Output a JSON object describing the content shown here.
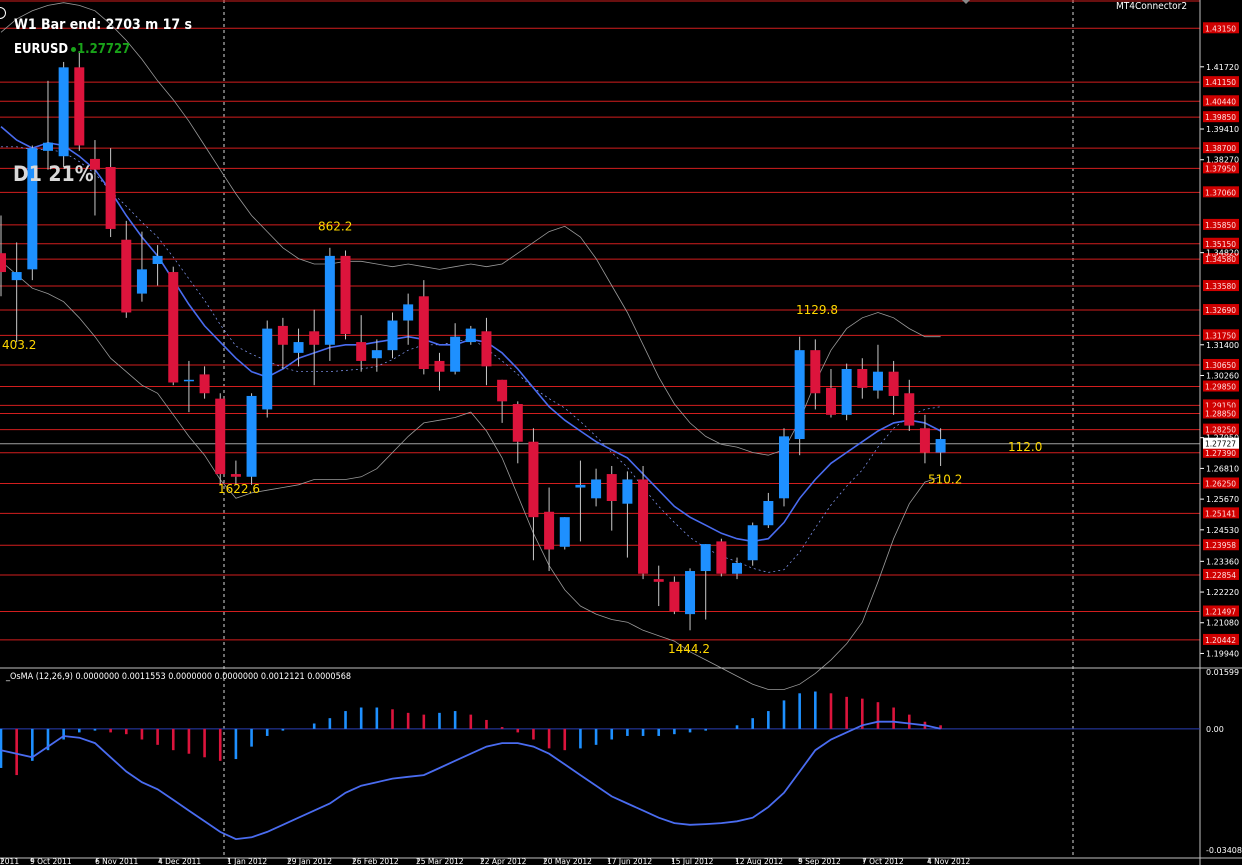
{
  "header": {
    "bar_timer": "W1 Bar end: 2703 m 17 s",
    "symbol": "EURUSD",
    "symbol_price": "1.27727",
    "d1_percent": "D1 21%",
    "connector_label": "MT4Connector2"
  },
  "indicator": {
    "label": "_OsMA (12,26,9) 0.0000000 0.0011553 0.0000000 0.0000000 0.0012121 0.0000568"
  },
  "colors": {
    "background": "#000000",
    "bull_candle": "#1e90ff",
    "bear_candle": "#dc143c",
    "level_line": "#d21e1e",
    "ma_line": "#4a6cf0",
    "bollinger": "#9a9a9a",
    "annotation": "#ffd700",
    "symbol_price": "#19a319"
  },
  "chart_data": [
    {
      "type": "candlestick",
      "timeframe": "W1",
      "ylim": [
        1.194,
        1.442
      ],
      "axis_ticks": [
        "1.41720",
        "1.39410",
        "1.38270",
        "1.34820",
        "1.31400",
        "1.30260",
        "1.27950",
        "1.26810",
        "1.25670",
        "1.24530",
        "1.23360",
        "1.22220",
        "1.21080",
        "1.19940"
      ],
      "level_labels": [
        "1.43150",
        "1.41150",
        "1.40440",
        "1.39850",
        "1.38700",
        "1.37950",
        "1.37060",
        "1.35850",
        "1.35150",
        "1.34580",
        "1.33580",
        "1.32690",
        "1.31750",
        "1.30650",
        "1.29850",
        "1.29150",
        "1.28850",
        "1.28250",
        "1.27390",
        "1.26250",
        "1.25141",
        "1.23958",
        "1.22854",
        "1.21497",
        "1.20442"
      ],
      "current_price_label": "1.27727",
      "x_labels": [
        "2011",
        "9 Oct 2011",
        "6 Nov 2011",
        "4 Dec 2011",
        "1 Jan 2012",
        "29 Jan 2012",
        "26 Feb 2012",
        "25 Mar 2012",
        "22 Apr 2012",
        "20 May 2012",
        "17 Jun 2012",
        "15 Jul 2012",
        "12 Aug 2012",
        "9 Sep 2012",
        "7 Oct 2012",
        "4 Nov 2012"
      ],
      "annotations": [
        {
          "text": "403.2",
          "price": 1.314
        },
        {
          "text": "862.2",
          "price": 1.358
        },
        {
          "text": "1622.6",
          "price": 1.2605
        },
        {
          "text": "1129.8",
          "price": 1.327
        },
        {
          "text": "1444.2",
          "price": 1.201
        },
        {
          "text": "112.0",
          "price": 1.276
        },
        {
          "text": "510.2",
          "price": 1.264
        }
      ],
      "candles": [
        {
          "o": 1.348,
          "h": 1.362,
          "l": 1.332,
          "c": 1.341
        },
        {
          "o": 1.338,
          "h": 1.352,
          "l": 1.315,
          "c": 1.341
        },
        {
          "o": 1.342,
          "h": 1.388,
          "l": 1.338,
          "c": 1.387
        },
        {
          "o": 1.386,
          "h": 1.412,
          "l": 1.379,
          "c": 1.389
        },
        {
          "o": 1.384,
          "h": 1.419,
          "l": 1.38,
          "c": 1.417
        },
        {
          "o": 1.417,
          "h": 1.423,
          "l": 1.386,
          "c": 1.388
        },
        {
          "o": 1.383,
          "h": 1.39,
          "l": 1.362,
          "c": 1.379
        },
        {
          "o": 1.38,
          "h": 1.387,
          "l": 1.354,
          "c": 1.357
        },
        {
          "o": 1.353,
          "h": 1.36,
          "l": 1.324,
          "c": 1.326
        },
        {
          "o": 1.333,
          "h": 1.356,
          "l": 1.33,
          "c": 1.342
        },
        {
          "o": 1.344,
          "h": 1.351,
          "l": 1.336,
          "c": 1.347
        },
        {
          "o": 1.341,
          "h": 1.343,
          "l": 1.299,
          "c": 1.3
        },
        {
          "o": 1.301,
          "h": 1.308,
          "l": 1.289,
          "c": 1.301
        },
        {
          "o": 1.303,
          "h": 1.306,
          "l": 1.294,
          "c": 1.296
        },
        {
          "o": 1.294,
          "h": 1.296,
          "l": 1.262,
          "c": 1.266
        },
        {
          "o": 1.266,
          "h": 1.271,
          "l": 1.262,
          "c": 1.265
        },
        {
          "o": 1.265,
          "h": 1.296,
          "l": 1.262,
          "c": 1.295
        },
        {
          "o": 1.29,
          "h": 1.323,
          "l": 1.287,
          "c": 1.32
        },
        {
          "o": 1.321,
          "h": 1.324,
          "l": 1.305,
          "c": 1.314
        },
        {
          "o": 1.311,
          "h": 1.32,
          "l": 1.306,
          "c": 1.315
        },
        {
          "o": 1.319,
          "h": 1.327,
          "l": 1.299,
          "c": 1.314
        },
        {
          "o": 1.314,
          "h": 1.35,
          "l": 1.308,
          "c": 1.347
        },
        {
          "o": 1.347,
          "h": 1.349,
          "l": 1.316,
          "c": 1.318
        },
        {
          "o": 1.315,
          "h": 1.325,
          "l": 1.304,
          "c": 1.308
        },
        {
          "o": 1.309,
          "h": 1.316,
          "l": 1.304,
          "c": 1.312
        },
        {
          "o": 1.312,
          "h": 1.326,
          "l": 1.309,
          "c": 1.323
        },
        {
          "o": 1.323,
          "h": 1.333,
          "l": 1.314,
          "c": 1.329
        },
        {
          "o": 1.332,
          "h": 1.338,
          "l": 1.303,
          "c": 1.305
        },
        {
          "o": 1.308,
          "h": 1.311,
          "l": 1.297,
          "c": 1.304
        },
        {
          "o": 1.304,
          "h": 1.322,
          "l": 1.303,
          "c": 1.317
        },
        {
          "o": 1.315,
          "h": 1.321,
          "l": 1.314,
          "c": 1.32
        },
        {
          "o": 1.319,
          "h": 1.324,
          "l": 1.299,
          "c": 1.306
        },
        {
          "o": 1.301,
          "h": 1.301,
          "l": 1.285,
          "c": 1.293
        },
        {
          "o": 1.292,
          "h": 1.293,
          "l": 1.27,
          "c": 1.278
        },
        {
          "o": 1.278,
          "h": 1.283,
          "l": 1.234,
          "c": 1.25
        },
        {
          "o": 1.252,
          "h": 1.261,
          "l": 1.23,
          "c": 1.238
        },
        {
          "o": 1.239,
          "h": 1.25,
          "l": 1.238,
          "c": 1.25
        },
        {
          "o": 1.261,
          "h": 1.271,
          "l": 1.241,
          "c": 1.262
        },
        {
          "o": 1.257,
          "h": 1.268,
          "l": 1.254,
          "c": 1.264
        },
        {
          "o": 1.266,
          "h": 1.269,
          "l": 1.245,
          "c": 1.256
        },
        {
          "o": 1.255,
          "h": 1.267,
          "l": 1.235,
          "c": 1.264
        },
        {
          "o": 1.264,
          "h": 1.269,
          "l": 1.227,
          "c": 1.229
        },
        {
          "o": 1.227,
          "h": 1.232,
          "l": 1.217,
          "c": 1.226
        },
        {
          "o": 1.226,
          "h": 1.228,
          "l": 1.214,
          "c": 1.215
        },
        {
          "o": 1.214,
          "h": 1.231,
          "l": 1.208,
          "c": 1.23
        },
        {
          "o": 1.23,
          "h": 1.24,
          "l": 1.212,
          "c": 1.24
        },
        {
          "o": 1.241,
          "h": 1.242,
          "l": 1.228,
          "c": 1.229
        },
        {
          "o": 1.229,
          "h": 1.235,
          "l": 1.227,
          "c": 1.233
        },
        {
          "o": 1.234,
          "h": 1.248,
          "l": 1.232,
          "c": 1.247
        },
        {
          "o": 1.247,
          "h": 1.259,
          "l": 1.246,
          "c": 1.256
        },
        {
          "o": 1.257,
          "h": 1.283,
          "l": 1.254,
          "c": 1.28
        },
        {
          "o": 1.279,
          "h": 1.317,
          "l": 1.273,
          "c": 1.312
        },
        {
          "o": 1.312,
          "h": 1.316,
          "l": 1.29,
          "c": 1.296
        },
        {
          "o": 1.298,
          "h": 1.305,
          "l": 1.287,
          "c": 1.288
        },
        {
          "o": 1.288,
          "h": 1.307,
          "l": 1.286,
          "c": 1.305
        },
        {
          "o": 1.305,
          "h": 1.309,
          "l": 1.294,
          "c": 1.298
        },
        {
          "o": 1.297,
          "h": 1.314,
          "l": 1.294,
          "c": 1.304
        },
        {
          "o": 1.304,
          "h": 1.308,
          "l": 1.288,
          "c": 1.295
        },
        {
          "o": 1.296,
          "h": 1.301,
          "l": 1.282,
          "c": 1.284
        },
        {
          "o": 1.283,
          "h": 1.288,
          "l": 1.27,
          "c": 1.274
        },
        {
          "o": 1.274,
          "h": 1.283,
          "l": 1.269,
          "c": 1.279
        }
      ],
      "ma": [
        1.395,
        1.39,
        1.387,
        1.389,
        1.388,
        1.384,
        1.379,
        1.371,
        1.362,
        1.354,
        1.347,
        1.338,
        1.329,
        1.321,
        1.315,
        1.309,
        1.304,
        1.302,
        1.305,
        1.309,
        1.311,
        1.313,
        1.314,
        1.314,
        1.315,
        1.316,
        1.317,
        1.316,
        1.314,
        1.314,
        1.316,
        1.315,
        1.311,
        1.305,
        1.298,
        1.291,
        1.286,
        1.282,
        1.278,
        1.275,
        1.272,
        1.266,
        1.26,
        1.254,
        1.25,
        1.247,
        1.244,
        1.242,
        1.241,
        1.242,
        1.248,
        1.257,
        1.264,
        1.27,
        1.274,
        1.278,
        1.282,
        1.285,
        1.286,
        1.285,
        1.282
      ],
      "bb_upper": [
        1.43,
        1.435,
        1.438,
        1.44,
        1.441,
        1.44,
        1.438,
        1.433,
        1.427,
        1.42,
        1.412,
        1.405,
        1.397,
        1.388,
        1.379,
        1.37,
        1.362,
        1.356,
        1.35,
        1.346,
        1.344,
        1.344,
        1.345,
        1.345,
        1.344,
        1.343,
        1.344,
        1.343,
        1.342,
        1.343,
        1.344,
        1.343,
        1.344,
        1.348,
        1.352,
        1.356,
        1.358,
        1.354,
        1.346,
        1.336,
        1.326,
        1.314,
        1.302,
        1.292,
        1.285,
        1.28,
        1.277,
        1.276,
        1.274,
        1.273,
        1.275,
        1.286,
        1.3,
        1.312,
        1.32,
        1.324,
        1.326,
        1.324,
        1.32,
        1.317,
        1.317
      ],
      "bb_lower": [
        1.345,
        1.34,
        1.335,
        1.333,
        1.33,
        1.324,
        1.317,
        1.309,
        1.304,
        1.299,
        1.296,
        1.288,
        1.28,
        1.273,
        1.264,
        1.257,
        1.259,
        1.26,
        1.261,
        1.262,
        1.264,
        1.264,
        1.264,
        1.265,
        1.268,
        1.274,
        1.28,
        1.285,
        1.286,
        1.287,
        1.289,
        1.282,
        1.272,
        1.258,
        1.244,
        1.232,
        1.223,
        1.217,
        1.214,
        1.212,
        1.211,
        1.208,
        1.206,
        1.204,
        1.2,
        1.197,
        1.194,
        1.191,
        1.188,
        1.186,
        1.186,
        1.188,
        1.192,
        1.197,
        1.203,
        1.211,
        1.226,
        1.242,
        1.255,
        1.263,
        1.265
      ]
    },
    {
      "type": "bar",
      "name": "OsMA (12,26,9)",
      "ylim": [
        -0.03408,
        0.01599
      ],
      "axis_ticks": [
        "0.01599",
        "0.00",
        "-0.03408"
      ],
      "histogram": [
        -0.011,
        -0.013,
        -0.009,
        -0.006,
        -0.003,
        -0.001,
        -0.0005,
        -0.001,
        -0.0015,
        -0.003,
        -0.0045,
        -0.006,
        -0.007,
        -0.008,
        -0.009,
        -0.0085,
        -0.005,
        -0.002,
        -0.0005,
        0.0,
        0.0015,
        0.003,
        0.005,
        0.006,
        0.006,
        0.0055,
        0.0045,
        0.004,
        0.0045,
        0.005,
        0.004,
        0.0025,
        0.0005,
        -0.001,
        -0.003,
        -0.0055,
        -0.006,
        -0.0055,
        -0.0045,
        -0.003,
        -0.002,
        -0.002,
        -0.002,
        -0.0015,
        -0.001,
        -0.0005,
        0.0,
        0.001,
        0.003,
        0.005,
        0.008,
        0.01,
        0.0105,
        0.01,
        0.009,
        0.0085,
        0.0075,
        0.006,
        0.004,
        0.002,
        0.001
      ],
      "signal": [
        -0.006,
        -0.007,
        -0.008,
        -0.005,
        -0.002,
        -0.0025,
        -0.004,
        -0.008,
        -0.012,
        -0.015,
        -0.017,
        -0.02,
        -0.023,
        -0.026,
        -0.029,
        -0.031,
        -0.0305,
        -0.029,
        -0.027,
        -0.025,
        -0.023,
        -0.021,
        -0.018,
        -0.016,
        -0.015,
        -0.014,
        -0.0135,
        -0.013,
        -0.011,
        -0.009,
        -0.007,
        -0.005,
        -0.004,
        -0.004,
        -0.005,
        -0.007,
        -0.01,
        -0.013,
        -0.016,
        -0.019,
        -0.021,
        -0.023,
        -0.025,
        -0.0265,
        -0.027,
        -0.0268,
        -0.0265,
        -0.026,
        -0.025,
        -0.022,
        -0.018,
        -0.012,
        -0.006,
        -0.003,
        -0.001,
        0.001,
        0.002,
        0.002,
        0.0015,
        0.001,
        0.0
      ]
    }
  ]
}
